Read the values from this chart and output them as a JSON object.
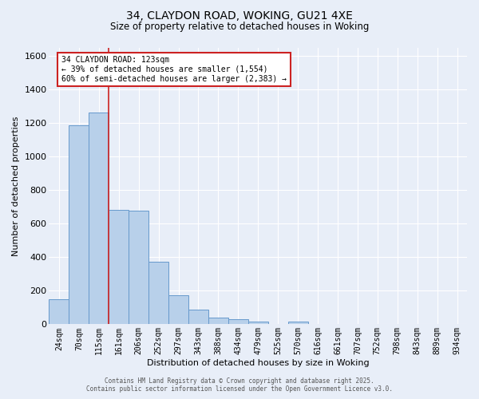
{
  "title_line1": "34, CLAYDON ROAD, WOKING, GU21 4XE",
  "title_line2": "Size of property relative to detached houses in Woking",
  "xlabel": "Distribution of detached houses by size in Woking",
  "ylabel": "Number of detached properties",
  "bin_labels": [
    "24sqm",
    "70sqm",
    "115sqm",
    "161sqm",
    "206sqm",
    "252sqm",
    "297sqm",
    "343sqm",
    "388sqm",
    "434sqm",
    "479sqm",
    "525sqm",
    "570sqm",
    "616sqm",
    "661sqm",
    "707sqm",
    "752sqm",
    "798sqm",
    "843sqm",
    "889sqm",
    "934sqm"
  ],
  "bar_values": [
    150,
    1190,
    1265,
    685,
    680,
    375,
    175,
    90,
    38,
    32,
    18,
    0,
    15,
    0,
    0,
    0,
    0,
    0,
    0,
    0,
    0
  ],
  "bar_color": "#b8d0ea",
  "bar_edgecolor": "#6699cc",
  "background_color": "#e8eef8",
  "grid_color": "#ffffff",
  "vline_x": 2.5,
  "vline_color": "#cc2222",
  "ylim": [
    0,
    1650
  ],
  "yticks": [
    0,
    200,
    400,
    600,
    800,
    1000,
    1200,
    1400,
    1600
  ],
  "annotation_text": "34 CLAYDON ROAD: 123sqm\n← 39% of detached houses are smaller (1,554)\n60% of semi-detached houses are larger (2,383) →",
  "annotation_box_facecolor": "#ffffff",
  "annotation_box_edgecolor": "#cc2222",
  "footer_line1": "Contains HM Land Registry data © Crown copyright and database right 2025.",
  "footer_line2": "Contains public sector information licensed under the Open Government Licence v3.0."
}
